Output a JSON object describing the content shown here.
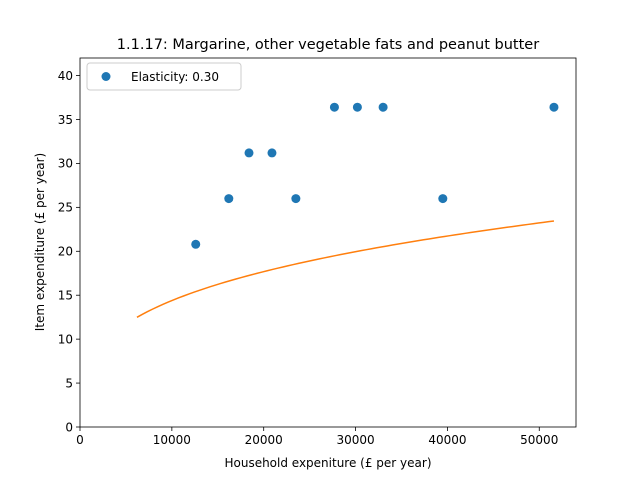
{
  "chart_data": {
    "type": "scatter",
    "title": "1.1.17: Margarine, other vegetable fats and peanut butter",
    "xlabel": "Household expeniture (£ per year)",
    "ylabel": "Item expenditure (£ per year)",
    "xlim": [
      0,
      54000
    ],
    "ylim": [
      0,
      42
    ],
    "xticks": [
      0,
      10000,
      20000,
      30000,
      40000,
      50000
    ],
    "yticks": [
      0,
      5,
      10,
      15,
      20,
      25,
      30,
      35,
      40
    ],
    "legend_position": "upper-left",
    "grid": false,
    "series": [
      {
        "name": "Elasticity: 0.30",
        "kind": "points",
        "color": "#1f77b4",
        "points": [
          [
            12600,
            20.8
          ],
          [
            16200,
            26.0
          ],
          [
            18400,
            31.2
          ],
          [
            20900,
            31.2
          ],
          [
            23500,
            26.0
          ],
          [
            27700,
            36.4
          ],
          [
            30200,
            36.4
          ],
          [
            33000,
            36.4
          ],
          [
            39500,
            26.0
          ],
          [
            51600,
            36.4
          ]
        ]
      },
      {
        "kind": "line",
        "color": "#ff7f0e",
        "model": "power",
        "x_range": [
          6200,
          51600
        ],
        "coef": 14.39,
        "exponent": 0.2975
      }
    ]
  }
}
